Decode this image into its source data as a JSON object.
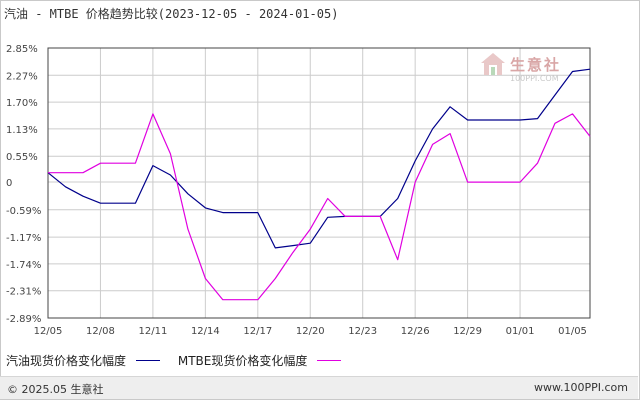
{
  "title": "汽油 - MTBE 价格趋势比较(2023-12-05 - 2024-01-05)",
  "watermark": {
    "name": "生意社",
    "url": "100PPI.COM"
  },
  "footer": {
    "copyright": "© 2025.05 生意社",
    "site": "www.100PPI.com"
  },
  "colors": {
    "gasoline": "#00008b",
    "mtbe": "#e000e0",
    "grid": "#cccccc",
    "axis": "#444444"
  },
  "chart_data": {
    "type": "line",
    "title": "汽油 - MTBE 价格趋势比较(2023-12-05 - 2024-01-05)",
    "xlabel": "",
    "ylabel": "",
    "ylim": [
      -2.89,
      2.85
    ],
    "yticks": [
      "2.85%",
      "2.27%",
      "1.70%",
      "1.13%",
      "0.55%",
      "0",
      "-0.59%",
      "-1.17%",
      "-1.74%",
      "-2.31%",
      "-2.89%"
    ],
    "ytick_values": [
      2.85,
      2.27,
      1.7,
      1.13,
      0.55,
      0,
      -0.59,
      -1.17,
      -1.74,
      -2.31,
      -2.89
    ],
    "xticks": [
      "12/05",
      "12/08",
      "12/11",
      "12/14",
      "12/17",
      "12/20",
      "12/23",
      "12/26",
      "12/29",
      "01/01",
      "01/05"
    ],
    "xtick_dates": [
      "2023-12-05",
      "2023-12-08",
      "2023-12-11",
      "2023-12-14",
      "2023-12-17",
      "2023-12-20",
      "2023-12-23",
      "2023-12-26",
      "2023-12-29",
      "2024-01-01",
      "2024-01-04"
    ],
    "x": [
      "2023-12-05",
      "2023-12-06",
      "2023-12-07",
      "2023-12-08",
      "2023-12-09",
      "2023-12-10",
      "2023-12-11",
      "2023-12-12",
      "2023-12-13",
      "2023-12-14",
      "2023-12-15",
      "2023-12-16",
      "2023-12-17",
      "2023-12-18",
      "2023-12-19",
      "2023-12-20",
      "2023-12-21",
      "2023-12-22",
      "2023-12-23",
      "2023-12-24",
      "2023-12-25",
      "2023-12-26",
      "2023-12-27",
      "2023-12-28",
      "2023-12-29",
      "2023-12-30",
      "2023-12-31",
      "2024-01-01",
      "2024-01-02",
      "2024-01-03",
      "2024-01-04",
      "2024-01-05"
    ],
    "series": [
      {
        "name": "汽油现货价格变化幅度",
        "color": "#00008b",
        "values": [
          0.2,
          -0.1,
          -0.3,
          -0.45,
          -0.45,
          -0.45,
          0.35,
          0.15,
          -0.25,
          -0.55,
          -0.65,
          -0.65,
          -0.65,
          -1.4,
          -1.35,
          -1.3,
          -0.75,
          -0.73,
          -0.73,
          -0.73,
          -0.35,
          0.45,
          1.13,
          1.6,
          1.32,
          1.32,
          1.32,
          1.32,
          1.35,
          1.85,
          2.35,
          2.4
        ]
      },
      {
        "name": "MTBE现货价格变化幅度",
        "color": "#e000e0",
        "values": [
          0.2,
          0.2,
          0.2,
          0.4,
          0.4,
          0.4,
          1.45,
          0.6,
          -1.0,
          -2.05,
          -2.5,
          -2.5,
          -2.5,
          -2.05,
          -1.5,
          -1.0,
          -0.35,
          -0.73,
          -0.73,
          -0.73,
          -1.65,
          0,
          0.8,
          1.03,
          0,
          0,
          0,
          0,
          0.4,
          1.25,
          1.45,
          0.97
        ]
      }
    ],
    "legend_position": "bottom-left",
    "grid": true
  }
}
